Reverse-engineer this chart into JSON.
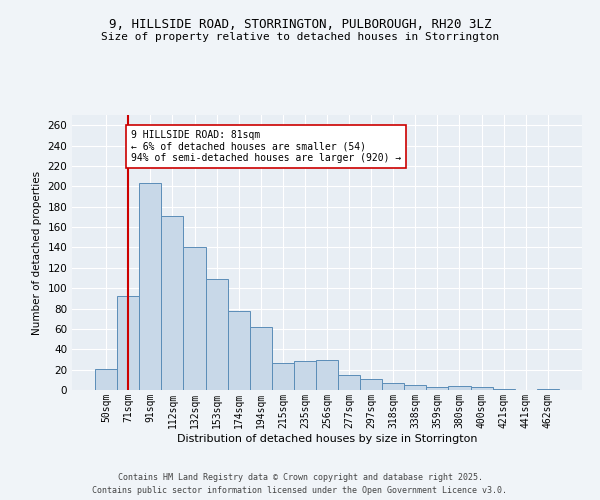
{
  "title_line1": "9, HILLSIDE ROAD, STORRINGTON, PULBOROUGH, RH20 3LZ",
  "title_line2": "Size of property relative to detached houses in Storrington",
  "xlabel": "Distribution of detached houses by size in Storrington",
  "ylabel": "Number of detached properties",
  "categories": [
    "50sqm",
    "71sqm",
    "91sqm",
    "112sqm",
    "132sqm",
    "153sqm",
    "174sqm",
    "194sqm",
    "215sqm",
    "235sqm",
    "256sqm",
    "277sqm",
    "297sqm",
    "318sqm",
    "338sqm",
    "359sqm",
    "380sqm",
    "400sqm",
    "421sqm",
    "441sqm",
    "462sqm"
  ],
  "values": [
    21,
    92,
    203,
    171,
    140,
    109,
    78,
    62,
    27,
    28,
    29,
    15,
    11,
    7,
    5,
    3,
    4,
    3,
    1,
    0,
    1
  ],
  "bar_color": "#c8d8e8",
  "bar_edge_color": "#5b8db8",
  "vline_x": 1.0,
  "vline_color": "#cc0000",
  "annotation_text": "9 HILLSIDE ROAD: 81sqm\n← 6% of detached houses are smaller (54)\n94% of semi-detached houses are larger (920) →",
  "annotation_box_color": "#ffffff",
  "annotation_box_edge": "#cc0000",
  "ylim": [
    0,
    270
  ],
  "yticks": [
    0,
    20,
    40,
    60,
    80,
    100,
    120,
    140,
    160,
    180,
    200,
    220,
    240,
    260
  ],
  "bg_color": "#e8eef4",
  "fig_bg_color": "#f0f4f8",
  "footer_line1": "Contains HM Land Registry data © Crown copyright and database right 2025.",
  "footer_line2": "Contains public sector information licensed under the Open Government Licence v3.0."
}
